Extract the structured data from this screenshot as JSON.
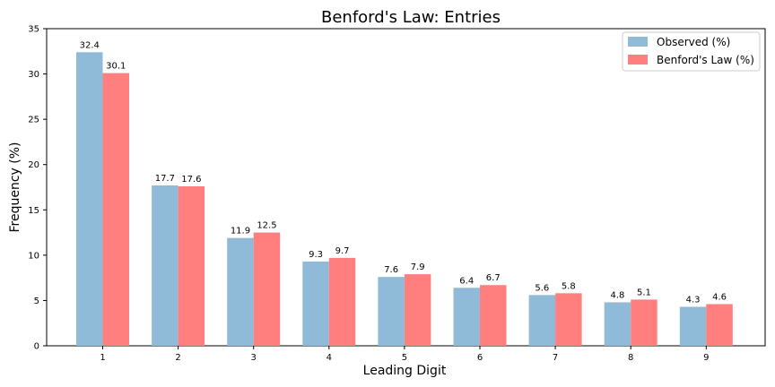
{
  "chart_data": {
    "type": "bar",
    "title": "Benford's Law: Entries",
    "xlabel": "Leading Digit",
    "ylabel": "Frequency (%)",
    "categories": [
      "1",
      "2",
      "3",
      "4",
      "5",
      "6",
      "7",
      "8",
      "9"
    ],
    "ylim": [
      0,
      35
    ],
    "yticks": [
      0,
      5,
      10,
      15,
      20,
      25,
      30,
      35
    ],
    "grid": false,
    "legend_position": "top-right",
    "series": [
      {
        "name": "Observed (%)",
        "color": "#8fbbd9",
        "values": [
          32.4,
          17.7,
          11.9,
          9.3,
          7.6,
          6.4,
          5.6,
          4.8,
          4.3
        ],
        "labels": [
          "32.4",
          "17.7",
          "11.9",
          "9.3",
          "7.6",
          "6.4",
          "5.6",
          "4.8",
          "4.3"
        ]
      },
      {
        "name": "Benford's Law (%)",
        "color": "#ff7f7f",
        "values": [
          30.1,
          17.6,
          12.5,
          9.7,
          7.9,
          6.7,
          5.8,
          5.1,
          4.6
        ],
        "labels": [
          "30.1",
          "17.6",
          "12.5",
          "9.7",
          "7.9",
          "6.7",
          "5.8",
          "5.1",
          "4.6"
        ]
      }
    ]
  }
}
